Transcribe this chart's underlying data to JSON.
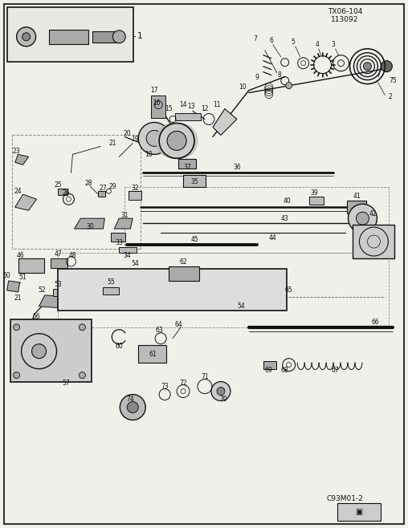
{
  "background_color": "#f0f0eb",
  "fig_width": 5.08,
  "fig_height": 6.58,
  "dpi": 100,
  "title_line1": "TX06-104",
  "title_line2": "113092",
  "diagram_id": "C93M01-2"
}
